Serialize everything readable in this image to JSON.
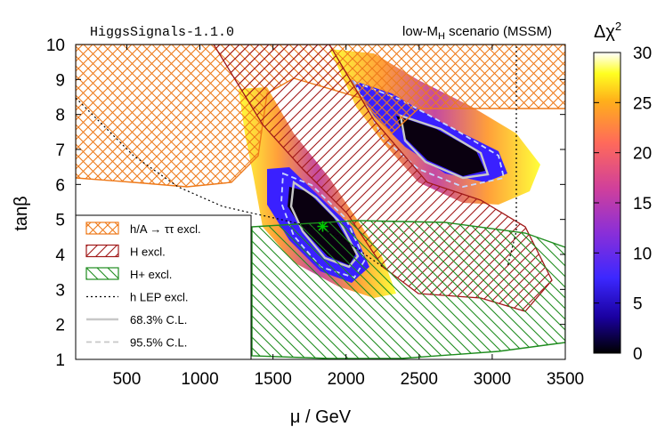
{
  "chart_data": {
    "type": "heatmap",
    "annotation_left": "HiggsSignals-1.1.0",
    "annotation_right": "low-MH scenario (MSSM)",
    "xlabel": "μ / GeV",
    "ylabel": "tanβ",
    "xlim": [
      150,
      3500
    ],
    "ylim": [
      1,
      10
    ],
    "xticks": [
      500,
      1000,
      1500,
      2000,
      2500,
      3000,
      3500
    ],
    "yticks": [
      1,
      2,
      3,
      4,
      5,
      6,
      7,
      8,
      9,
      10
    ],
    "colorbar": {
      "label": "Δχ²",
      "range": [
        0,
        30
      ],
      "ticks": [
        0,
        5,
        10,
        15,
        20,
        25,
        30
      ],
      "colors": [
        "#000000",
        "#1a00a0",
        "#3c28ff",
        "#8a2fd8",
        "#d1409a",
        "#ff6a5a",
        "#ffb01a",
        "#ffff20",
        "#ffffff"
      ]
    },
    "best_fit": {
      "mu": 1840,
      "tanb": 4.8,
      "color": "#00cc00"
    },
    "exclusions": {
      "tautau_color": "#ee7a1a",
      "H_color": "#a01818",
      "Hplus_color": "#1e8c1e"
    },
    "legend": [
      {
        "label": "h/A → ττ excl.",
        "style": "tautau"
      },
      {
        "label": "H excl.",
        "style": "H"
      },
      {
        "label": "H+ excl.",
        "style": "Hplus"
      },
      {
        "label": "h LEP excl.",
        "style": "dotted"
      },
      {
        "label": "68.3% C.L.",
        "style": "solid"
      },
      {
        "label": "95.5% C.L.",
        "style": "dashed"
      }
    ]
  }
}
